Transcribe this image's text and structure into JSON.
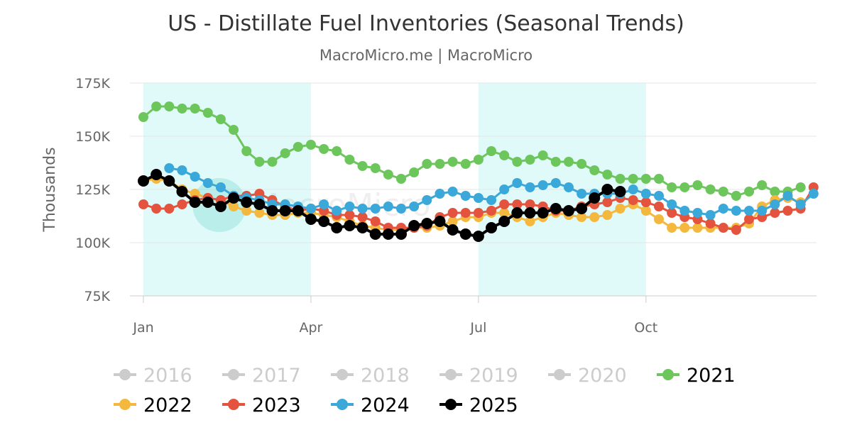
{
  "chart_data": {
    "type": "line",
    "title": "US - Distillate Fuel Inventories (Seasonal Trends)",
    "subtitle": "MacroMicro.me | MacroMicro",
    "ylabel": "Thousands",
    "y_ticks": [
      "75K",
      "100K",
      "125K",
      "150K",
      "175K"
    ],
    "ylim": [
      75,
      175
    ],
    "x_ticks": [
      {
        "label": "Jan",
        "week": 0
      },
      {
        "label": "Apr",
        "week": 13
      },
      {
        "label": "Jul",
        "week": 26
      },
      {
        "label": "Oct",
        "week": 39
      }
    ],
    "shaded_ranges_weeks": [
      [
        0,
        13
      ],
      [
        26,
        39
      ]
    ],
    "shade_color": "#e0fafa",
    "watermark": "MacroMicro",
    "x_unit": "week of year",
    "series": [
      {
        "name": "2016",
        "color": "#cccccc",
        "visible": false,
        "values": []
      },
      {
        "name": "2017",
        "color": "#cccccc",
        "visible": false,
        "values": []
      },
      {
        "name": "2018",
        "color": "#cccccc",
        "visible": false,
        "values": []
      },
      {
        "name": "2019",
        "color": "#cccccc",
        "visible": false,
        "values": []
      },
      {
        "name": "2020",
        "color": "#cccccc",
        "visible": false,
        "values": []
      },
      {
        "name": "2021",
        "color": "#6cc65c",
        "visible": true,
        "values": [
          159,
          164,
          164,
          163,
          163,
          161,
          158,
          153,
          143,
          138,
          138,
          142,
          145,
          146,
          144,
          143,
          139,
          136,
          135,
          132,
          130,
          133,
          137,
          137,
          138,
          137,
          139,
          143,
          141,
          138,
          139,
          141,
          138,
          138,
          137,
          134,
          132,
          130,
          130,
          130,
          130,
          126,
          126,
          127,
          125,
          124,
          122,
          124,
          127,
          124,
          124,
          126
        ]
      },
      {
        "name": "2022",
        "color": "#f4b83f",
        "visible": true,
        "values": [
          129,
          130,
          129,
          125,
          123,
          121,
          120,
          117,
          115,
          114,
          113,
          113,
          114,
          114,
          113,
          112,
          110,
          108,
          107,
          106,
          106,
          107,
          107,
          108,
          110,
          112,
          112,
          114,
          114,
          112,
          110,
          112,
          114,
          113,
          112,
          112,
          113,
          116,
          118,
          115,
          111,
          107,
          107,
          107,
          107,
          107,
          107,
          109,
          117,
          120,
          121,
          119
        ]
      },
      {
        "name": "2023",
        "color": "#e4533d",
        "visible": true,
        "values": [
          118,
          116,
          116,
          118,
          120,
          121,
          120,
          122,
          122,
          123,
          120,
          117,
          115,
          116,
          115,
          113,
          113,
          112,
          110,
          107,
          107,
          107,
          108,
          112,
          114,
          114,
          114,
          115,
          118,
          118,
          118,
          117,
          115,
          115,
          117,
          118,
          119,
          121,
          120,
          119,
          117,
          114,
          112,
          111,
          109,
          107,
          106,
          111,
          112,
          114,
          115,
          116,
          126
        ]
      },
      {
        "name": "2024",
        "color": "#3aa8d8",
        "visible": true,
        "values": [
          null,
          null,
          135,
          134,
          131,
          128,
          126,
          122,
          121,
          120,
          118,
          118,
          117,
          116,
          118,
          115,
          117,
          116,
          116,
          117,
          116,
          117,
          120,
          123,
          124,
          122,
          121,
          120,
          125,
          128,
          126,
          127,
          128,
          126,
          123,
          123,
          123,
          123,
          125,
          123,
          122,
          118,
          115,
          114,
          113,
          116,
          115,
          115,
          115,
          118,
          122,
          118,
          123
        ]
      },
      {
        "name": "2025",
        "color": "#000000",
        "visible": true,
        "values": [
          129,
          132,
          129,
          124,
          119,
          119,
          117,
          121,
          119,
          118,
          115,
          115,
          115,
          111,
          110,
          107,
          108,
          107,
          104,
          104,
          104,
          108,
          109,
          110,
          106,
          104,
          103,
          107,
          110,
          114,
          114,
          114,
          116,
          115,
          116,
          121,
          125,
          124
        ]
      }
    ]
  }
}
